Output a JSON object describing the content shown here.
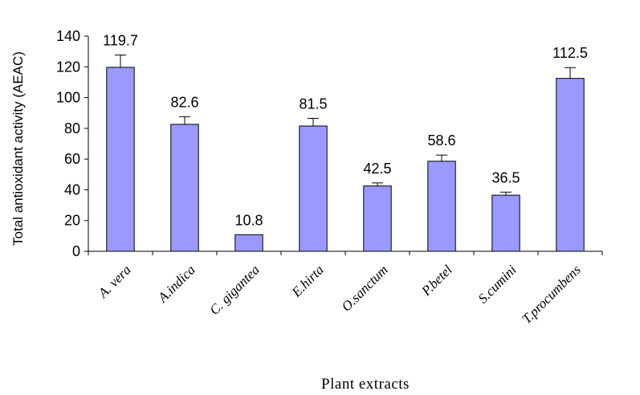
{
  "chart_data": {
    "type": "bar",
    "title": "",
    "xlabel": "Plant extracts",
    "ylabel": "Total antioxidant activity (AEAC)",
    "categories": [
      "A. vera",
      "A.indica",
      "C. gigantea",
      "E.hirta",
      "O.sanctum",
      "P.betel",
      "S.cumini",
      "T.procumbens"
    ],
    "values": [
      119.7,
      82.6,
      10.8,
      81.5,
      42.5,
      58.6,
      36.5,
      112.5
    ],
    "value_labels": [
      "119.7",
      "82.6",
      "10.8",
      "81.5",
      "42.5",
      "58.6",
      "36.5",
      "112.5"
    ],
    "errors": [
      8,
      5,
      0,
      5,
      2,
      4,
      2,
      7
    ],
    "ylim": [
      0,
      140
    ],
    "yticks": [
      0,
      20,
      40,
      60,
      80,
      100,
      120,
      140
    ],
    "grid": false,
    "legend": "none",
    "colors": {
      "bar_fill": "#9999ff",
      "bar_stroke": "#000000"
    }
  }
}
